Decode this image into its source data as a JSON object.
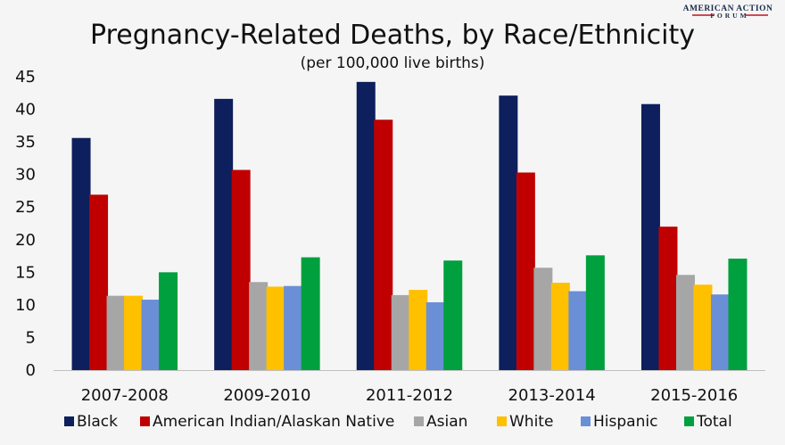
{
  "logo": {
    "line1": "AMERICAN ACTION",
    "line2": "FORUM",
    "accent": "#c1121f"
  },
  "chart_data": {
    "type": "bar",
    "title": "Pregnancy-Related Deaths, by Race/Ethnicity",
    "subtitle": "(per 100,000 live births)",
    "categories": [
      "2007-2008",
      "2009-2010",
      "2011-2012",
      "2013-2014",
      "2015-2016"
    ],
    "ylim": [
      0,
      45
    ],
    "yticks": [
      0,
      5,
      10,
      15,
      20,
      25,
      30,
      35,
      40,
      45
    ],
    "grid": false,
    "legend_position": "bottom",
    "series": [
      {
        "name": "Black",
        "color": "#0d1f5c",
        "values": [
          35.6,
          41.6,
          44.2,
          42.1,
          40.8
        ]
      },
      {
        "name": "American Indian/Alaskan Native",
        "color": "#c00000",
        "values": [
          26.9,
          30.7,
          38.4,
          30.3,
          22.0
        ]
      },
      {
        "name": "Asian",
        "color": "#a6a6a6",
        "values": [
          11.4,
          13.5,
          11.5,
          15.7,
          14.6
        ]
      },
      {
        "name": "White",
        "color": "#ffc000",
        "values": [
          11.4,
          12.8,
          12.3,
          13.4,
          13.1
        ]
      },
      {
        "name": "Hispanic",
        "color": "#6a8fd6",
        "values": [
          10.8,
          12.9,
          10.4,
          12.1,
          11.6
        ]
      },
      {
        "name": "Total",
        "color": "#00a03e",
        "values": [
          15.0,
          17.3,
          16.8,
          17.6,
          17.1
        ]
      }
    ]
  }
}
